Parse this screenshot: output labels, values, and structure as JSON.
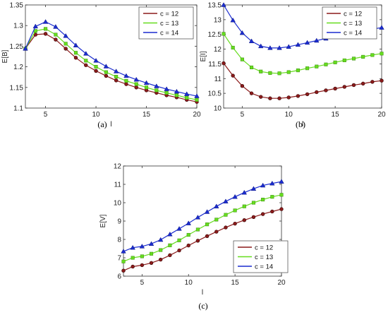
{
  "chart_data": [
    {
      "panel": "a",
      "caption": "(a)",
      "type": "line",
      "xlabel": "l",
      "ylabel": "E[B]",
      "xlim": [
        3,
        20
      ],
      "ylim": [
        1.1,
        1.35
      ],
      "xticks": [
        "5",
        "10",
        "15",
        "20"
      ],
      "yticks": [
        "1.1",
        "1.15",
        "1.2",
        "1.25",
        "1.3",
        "1.35"
      ],
      "grid": false,
      "legend_position": "top-right",
      "x": [
        3,
        4,
        5,
        6,
        7,
        8,
        9,
        10,
        11,
        12,
        13,
        14,
        15,
        16,
        17,
        18,
        19,
        20
      ],
      "series": [
        {
          "name": "c = 12",
          "marker": "circle",
          "color": "#8b1a1a",
          "values": [
            1.244,
            1.278,
            1.28,
            1.266,
            1.244,
            1.222,
            1.204,
            1.19,
            1.178,
            1.167,
            1.158,
            1.15,
            1.143,
            1.137,
            1.131,
            1.126,
            1.12,
            1.115
          ]
        },
        {
          "name": "c = 13",
          "marker": "square",
          "color": "#66dd1e",
          "values": [
            1.244,
            1.287,
            1.292,
            1.278,
            1.256,
            1.234,
            1.215,
            1.2,
            1.187,
            1.176,
            1.166,
            1.158,
            1.15,
            1.143,
            1.137,
            1.131,
            1.125,
            1.12
          ]
        },
        {
          "name": "c = 14",
          "marker": "triangle",
          "color": "#1a2ccf",
          "values": [
            1.244,
            1.298,
            1.309,
            1.297,
            1.275,
            1.252,
            1.232,
            1.215,
            1.201,
            1.189,
            1.178,
            1.169,
            1.161,
            1.153,
            1.146,
            1.14,
            1.134,
            1.129
          ]
        }
      ]
    },
    {
      "panel": "b",
      "caption": "(b)",
      "type": "line",
      "xlabel": "l",
      "ylabel": "E[I]",
      "xlim": [
        3,
        20
      ],
      "ylim": [
        10,
        13.5
      ],
      "xticks": [
        "5",
        "10",
        "15",
        "20"
      ],
      "yticks": [
        "10",
        "10.5",
        "11",
        "11.5",
        "12",
        "12.5",
        "13",
        "13.5"
      ],
      "grid": false,
      "legend_position": "top-right",
      "x": [
        3,
        4,
        5,
        6,
        7,
        8,
        9,
        10,
        11,
        12,
        13,
        14,
        15,
        16,
        17,
        18,
        19,
        20
      ],
      "series": [
        {
          "name": "c = 12",
          "marker": "circle",
          "color": "#8b1a1a",
          "values": [
            11.52,
            11.1,
            10.75,
            10.5,
            10.38,
            10.33,
            10.33,
            10.36,
            10.41,
            10.47,
            10.54,
            10.6,
            10.66,
            10.72,
            10.78,
            10.83,
            10.89,
            10.93
          ]
        },
        {
          "name": "c = 13",
          "marker": "square",
          "color": "#66dd1e",
          "values": [
            12.52,
            12.05,
            11.65,
            11.38,
            11.24,
            11.19,
            11.18,
            11.22,
            11.28,
            11.35,
            11.41,
            11.48,
            11.55,
            11.62,
            11.68,
            11.74,
            11.8,
            11.85
          ]
        },
        {
          "name": "c = 14",
          "marker": "triangle",
          "color": "#1a2ccf",
          "values": [
            13.5,
            12.98,
            12.55,
            12.27,
            12.1,
            12.04,
            12.04,
            12.08,
            12.15,
            12.22,
            12.29,
            12.36,
            12.43,
            12.5,
            12.56,
            12.62,
            12.68,
            12.73
          ]
        }
      ]
    },
    {
      "panel": "c",
      "caption": "(c)",
      "type": "line",
      "xlabel": "l",
      "ylabel": "E[V]",
      "xlim": [
        3,
        20
      ],
      "ylim": [
        6,
        12
      ],
      "xticks": [
        "5",
        "10",
        "15",
        "20"
      ],
      "yticks": [
        "6",
        "7",
        "8",
        "9",
        "10",
        "11",
        "12"
      ],
      "grid": false,
      "legend_position": "bottom-right",
      "x": [
        3,
        4,
        5,
        6,
        7,
        8,
        9,
        10,
        11,
        12,
        13,
        14,
        15,
        16,
        17,
        18,
        19,
        20
      ],
      "series": [
        {
          "name": "c = 12",
          "marker": "circle",
          "color": "#8b1a1a",
          "values": [
            6.3,
            6.52,
            6.6,
            6.72,
            6.9,
            7.14,
            7.4,
            7.67,
            7.93,
            8.18,
            8.42,
            8.65,
            8.86,
            9.05,
            9.22,
            9.38,
            9.52,
            9.65
          ]
        },
        {
          "name": "c = 13",
          "marker": "square",
          "color": "#66dd1e",
          "values": [
            6.8,
            7.0,
            7.08,
            7.22,
            7.42,
            7.68,
            7.95,
            8.25,
            8.54,
            8.82,
            9.08,
            9.34,
            9.58,
            9.8,
            10.0,
            10.17,
            10.32,
            10.43
          ]
        },
        {
          "name": "c = 14",
          "marker": "triangle",
          "color": "#1a2ccf",
          "values": [
            7.35,
            7.55,
            7.62,
            7.76,
            7.98,
            8.28,
            8.58,
            8.88,
            9.2,
            9.5,
            9.8,
            10.07,
            10.32,
            10.55,
            10.76,
            10.94,
            11.05,
            11.15
          ]
        }
      ]
    }
  ]
}
